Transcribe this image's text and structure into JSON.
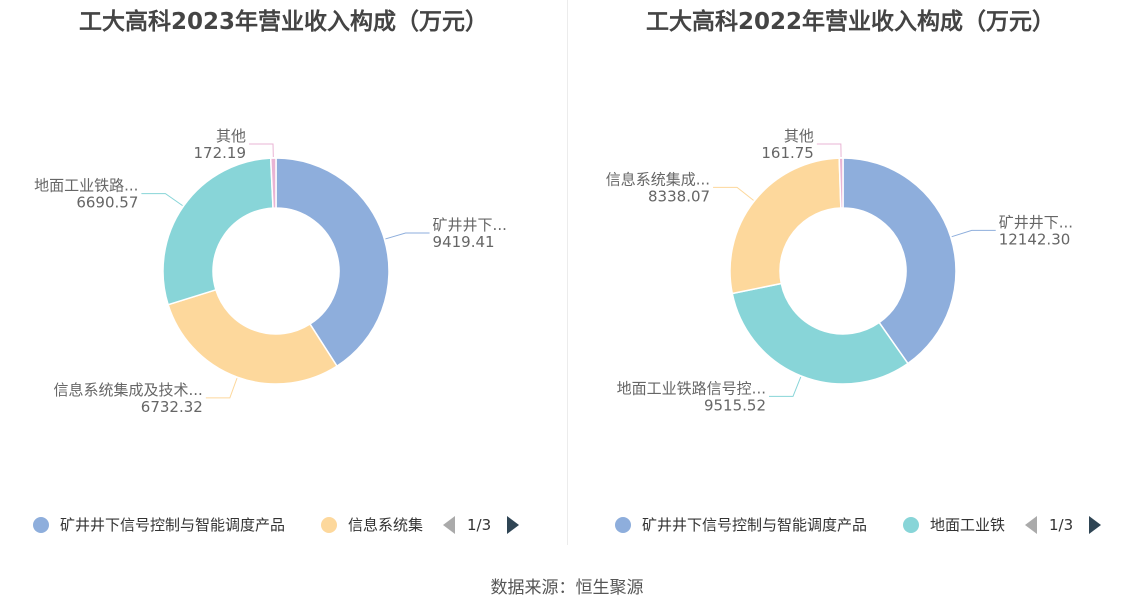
{
  "source": "数据来源：恒生聚源",
  "chart_data": [
    {
      "type": "pie",
      "donut": true,
      "title": "工大高科2023年营业收入构成（万元）",
      "slices": [
        {
          "name": "矿井井下信号控制与智能调度产品",
          "label": "矿井井下...",
          "value": 9419.41,
          "value_label": "9419.41",
          "color": "#8eaedc"
        },
        {
          "name": "信息系统集成及技术服务",
          "label": "信息系统集成及技术...",
          "value": 6732.32,
          "value_label": "6732.32",
          "color": "#fdd89c"
        },
        {
          "name": "地面工业铁路信号控制",
          "label": "地面工业铁路...",
          "value": 6690.57,
          "value_label": "6690.57",
          "color": "#88d5d8"
        },
        {
          "name": "其他",
          "label": "其他",
          "value": 172.19,
          "value_label": "172.19",
          "color": "#e9b4d4"
        }
      ],
      "legend": {
        "items": [
          "矿井井下信号控制与智能调度产品",
          "信息系统集"
        ],
        "page": "1/3",
        "placement": "bottom"
      }
    },
    {
      "type": "pie",
      "donut": true,
      "title": "工大高科2022年营业收入构成（万元）",
      "slices": [
        {
          "name": "矿井井下信号控制与智能调度产品",
          "label": "矿井井下...",
          "value": 12142.3,
          "value_label": "12142.30",
          "color": "#8eaedc"
        },
        {
          "name": "地面工业铁路信号控制",
          "label": "地面工业铁路信号控...",
          "value": 9515.52,
          "value_label": "9515.52",
          "color": "#88d5d8"
        },
        {
          "name": "信息系统集成及技术服务",
          "label": "信息系统集成...",
          "value": 8338.07,
          "value_label": "8338.07",
          "color": "#fdd89c"
        },
        {
          "name": "其他",
          "label": "其他",
          "value": 161.75,
          "value_label": "161.75",
          "color": "#e9b4d4"
        }
      ],
      "legend": {
        "items": [
          "矿井井下信号控制与智能调度产品",
          "地面工业铁"
        ],
        "page": "1/3",
        "placement": "bottom"
      }
    }
  ]
}
